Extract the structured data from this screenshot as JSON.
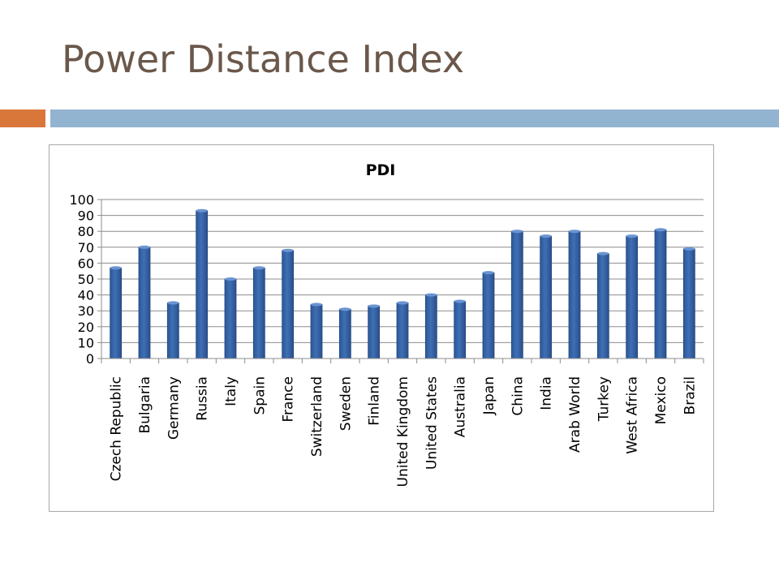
{
  "slide": {
    "title": "Power Distance Index"
  },
  "colors": {
    "title_text": "#6b584a",
    "accent": "#d9773b",
    "band": "#93b4d0",
    "bar_fill": "#3f6fb4",
    "bar_edge": "#23477f",
    "grid": "#8c8c8c"
  },
  "chart_data": {
    "type": "bar",
    "title": "PDI",
    "xlabel": "",
    "ylabel": "",
    "ylim": [
      0,
      100
    ],
    "yticks": [
      0,
      10,
      20,
      30,
      40,
      50,
      60,
      70,
      80,
      90,
      100
    ],
    "grid": true,
    "categories": [
      "Czech Republic",
      "Bulgaria",
      "Germany",
      "Russia",
      "Italy",
      "Spain",
      "France",
      "Switzerland",
      "Sweden",
      "Finland",
      "United Kingdom",
      "United States",
      "Australia",
      "Japan",
      "China",
      "India",
      "Arab World",
      "Turkey",
      "West Africa",
      "Mexico",
      "Brazil"
    ],
    "values": [
      57,
      70,
      35,
      93,
      50,
      57,
      68,
      34,
      31,
      33,
      35,
      40,
      36,
      54,
      80,
      77,
      80,
      66,
      77,
      81,
      69
    ]
  }
}
